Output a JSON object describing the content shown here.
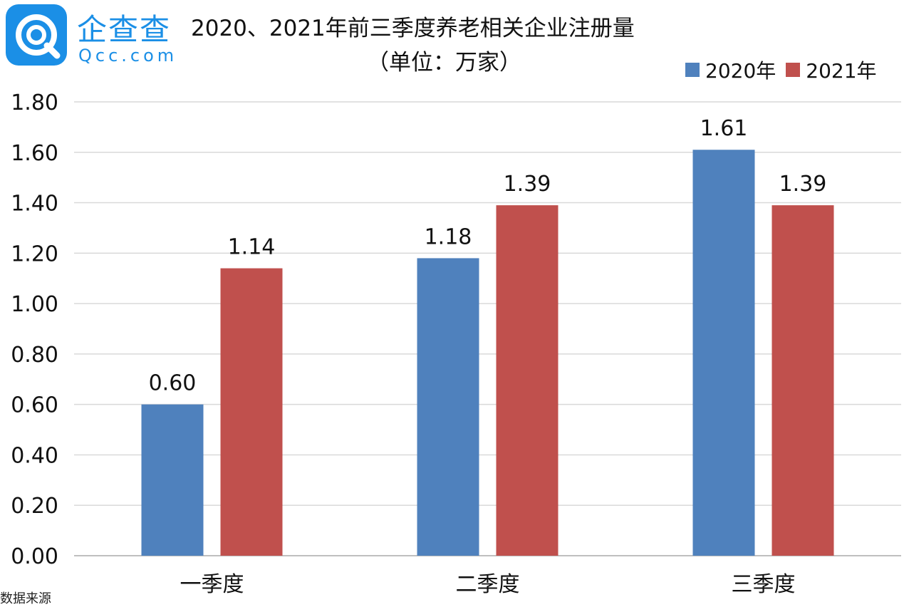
{
  "logo": {
    "cn": "企查查",
    "en": "Qcc.com",
    "icon": "qcc-logo-icon"
  },
  "colors": {
    "s2020": "#4f81bd",
    "s2021": "#c0504d",
    "brand": "#1b8fe6"
  },
  "footer_cut": "数据来源",
  "chart_data": {
    "type": "bar",
    "title": "2020、2021年前三季度养老相关企业注册量",
    "subtitle": "（单位：万家）",
    "categories": [
      "一季度",
      "二季度",
      "三季度"
    ],
    "series": [
      {
        "name": "2020年",
        "values": [
          0.6,
          1.18,
          1.61
        ],
        "labels": [
          "0.60",
          "1.18",
          "1.61"
        ]
      },
      {
        "name": "2021年",
        "values": [
          1.14,
          1.39,
          1.39
        ],
        "labels": [
          "1.14",
          "1.39",
          "1.39"
        ]
      }
    ],
    "ylim": [
      0,
      1.8
    ],
    "yticks": [
      "0.00",
      "0.20",
      "0.40",
      "0.60",
      "0.80",
      "1.00",
      "1.20",
      "1.40",
      "1.60",
      "1.80"
    ],
    "xlabel": "",
    "ylabel": "",
    "grid": true,
    "legend": "top-right"
  }
}
